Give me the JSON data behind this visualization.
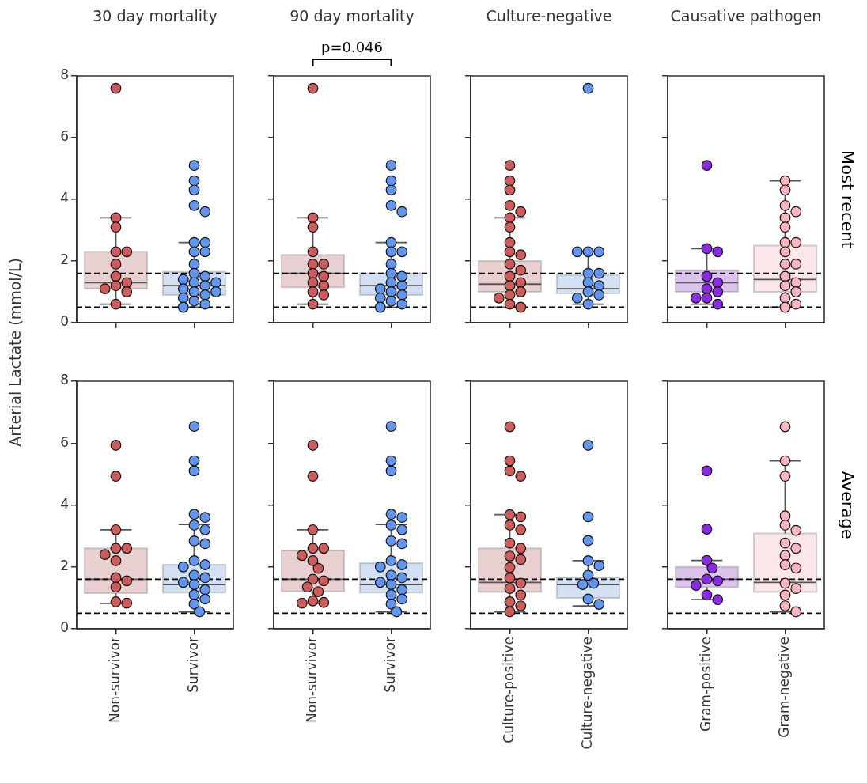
{
  "chart_data": [
    {
      "type": "box",
      "title": "30 day mortality",
      "ylabel": "Arterial Lactate (mmol/L)",
      "categories": [
        "Non-survivor",
        "Survivor"
      ],
      "ylim": [
        0,
        8
      ],
      "yticks": [
        0,
        2,
        4,
        6,
        8
      ],
      "tick_labels": "y",
      "marker": "circle",
      "ref_lines": [
        {
          "axis": "y",
          "value": 1.6,
          "color": "#000000",
          "line_style": "dashed"
        },
        {
          "axis": "y",
          "value": 0.5,
          "color": "#000000",
          "line_style": "dashed"
        }
      ],
      "series": [
        {
          "type": "box",
          "colors": [
            "#e8d0d1",
            "#d3dff3"
          ],
          "boxes": [
            {
              "low": 0.6,
              "q1": 1.1,
              "median": 1.3,
              "q3": 2.3,
              "high": 3.4
            },
            {
              "low": 0.5,
              "q1": 0.9,
              "median": 1.2,
              "q3": 1.65,
              "high": 2.6
            }
          ]
        },
        {
          "type": "scatter",
          "color": "#cd5c5c",
          "x": [
            "Non-survivor",
            "Non-survivor",
            "Non-survivor",
            "Non-survivor",
            "Non-survivor",
            "Non-survivor",
            "Non-survivor",
            "Non-survivor",
            "Non-survivor",
            "Non-survivor",
            "Non-survivor",
            "Non-survivor"
          ],
          "values": [
            7.6,
            3.4,
            3.1,
            2.3,
            2.3,
            1.9,
            1.5,
            1.3,
            1.2,
            1.1,
            1.0,
            0.6
          ]
        },
        {
          "type": "scatter",
          "color": "#6495ed",
          "x": [
            "Survivor",
            "Survivor",
            "Survivor",
            "Survivor",
            "Survivor",
            "Survivor",
            "Survivor",
            "Survivor",
            "Survivor",
            "Survivor",
            "Survivor",
            "Survivor",
            "Survivor",
            "Survivor",
            "Survivor",
            "Survivor",
            "Survivor",
            "Survivor",
            "Survivor",
            "Survivor",
            "Survivor",
            "Survivor",
            "Survivor",
            "Survivor"
          ],
          "values": [
            5.1,
            4.6,
            4.3,
            3.8,
            3.6,
            2.6,
            2.6,
            2.3,
            2.3,
            1.9,
            1.6,
            1.5,
            1.4,
            1.3,
            1.3,
            1.2,
            1.1,
            1.0,
            1.0,
            0.9,
            0.8,
            0.7,
            0.6,
            0.5
          ]
        }
      ]
    },
    {
      "type": "box",
      "title": "90 day mortality",
      "annotations": [
        "p=0.046"
      ],
      "categories": [
        "Non-survivor",
        "Survivor"
      ],
      "ylim": [
        0,
        8
      ],
      "yticks": [
        0,
        2,
        4,
        6,
        8
      ],
      "tick_labels": false,
      "marker": "circle",
      "ref_lines": [
        {
          "axis": "y",
          "value": 1.6,
          "color": "#000000",
          "line_style": "dashed"
        },
        {
          "axis": "y",
          "value": 0.5,
          "color": "#000000",
          "line_style": "dashed"
        }
      ],
      "series": [
        {
          "type": "box",
          "colors": [
            "#e8d0d1",
            "#d3dff3"
          ],
          "boxes": [
            {
              "low": 0.6,
              "q1": 1.15,
              "median": 1.6,
              "q3": 2.2,
              "high": 3.4
            },
            {
              "low": 0.5,
              "q1": 0.9,
              "median": 1.2,
              "q3": 1.6,
              "high": 2.6
            }
          ]
        },
        {
          "type": "scatter",
          "color": "#cd5c5c",
          "x": [
            "Non-survivor",
            "Non-survivor",
            "Non-survivor",
            "Non-survivor",
            "Non-survivor",
            "Non-survivor",
            "Non-survivor",
            "Non-survivor",
            "Non-survivor",
            "Non-survivor",
            "Non-survivor",
            "Non-survivor",
            "Non-survivor"
          ],
          "values": [
            7.6,
            3.4,
            3.1,
            2.3,
            1.9,
            1.9,
            1.6,
            1.5,
            1.3,
            1.2,
            1.0,
            0.9,
            0.6
          ]
        },
        {
          "type": "scatter",
          "color": "#6495ed",
          "x": [
            "Survivor",
            "Survivor",
            "Survivor",
            "Survivor",
            "Survivor",
            "Survivor",
            "Survivor",
            "Survivor",
            "Survivor",
            "Survivor",
            "Survivor",
            "Survivor",
            "Survivor",
            "Survivor",
            "Survivor",
            "Survivor",
            "Survivor",
            "Survivor",
            "Survivor",
            "Survivor"
          ],
          "values": [
            5.1,
            4.6,
            4.3,
            3.8,
            3.6,
            2.6,
            2.3,
            2.3,
            1.9,
            1.6,
            1.5,
            1.3,
            1.2,
            1.1,
            1.0,
            0.9,
            0.8,
            0.7,
            0.6,
            0.5
          ]
        }
      ]
    },
    {
      "type": "box",
      "title": "Culture-negative",
      "categories": [
        "Culture-positive",
        "Culture-negative"
      ],
      "ylim": [
        0,
        8
      ],
      "yticks": [
        0,
        2,
        4,
        6,
        8
      ],
      "tick_labels": false,
      "marker": "circle",
      "ref_lines": [
        {
          "axis": "y",
          "value": 1.6,
          "color": "#000000",
          "line_style": "dashed"
        },
        {
          "axis": "y",
          "value": 0.5,
          "color": "#000000",
          "line_style": "dashed"
        }
      ],
      "series": [
        {
          "type": "box",
          "colors": [
            "#e8d0d1",
            "#d3dff3"
          ],
          "boxes": [
            {
              "low": 0.5,
              "q1": 1.0,
              "median": 1.25,
              "q3": 2.0,
              "high": 3.4
            },
            {
              "low": 0.6,
              "q1": 0.95,
              "median": 1.1,
              "q3": 1.55,
              "high": 2.3
            }
          ]
        },
        {
          "type": "scatter",
          "color": "#cd5c5c",
          "x": [
            "Culture-positive",
            "Culture-positive",
            "Culture-positive",
            "Culture-positive",
            "Culture-positive",
            "Culture-positive",
            "Culture-positive",
            "Culture-positive",
            "Culture-positive",
            "Culture-positive",
            "Culture-positive",
            "Culture-positive",
            "Culture-positive",
            "Culture-positive",
            "Culture-positive",
            "Culture-positive",
            "Culture-positive",
            "Culture-positive",
            "Culture-positive",
            "Culture-positive"
          ],
          "values": [
            5.1,
            4.6,
            4.3,
            3.8,
            3.6,
            3.4,
            3.1,
            2.6,
            2.3,
            2.2,
            1.9,
            1.7,
            1.5,
            1.3,
            1.2,
            1.0,
            0.9,
            0.8,
            0.6,
            0.5
          ]
        },
        {
          "type": "scatter",
          "color": "#6495ed",
          "x": [
            "Culture-negative",
            "Culture-negative",
            "Culture-negative",
            "Culture-negative",
            "Culture-negative",
            "Culture-negative",
            "Culture-negative",
            "Culture-negative",
            "Culture-negative",
            "Culture-negative",
            "Culture-negative",
            "Culture-negative"
          ],
          "values": [
            7.6,
            2.3,
            2.3,
            2.3,
            1.6,
            1.6,
            1.3,
            1.2,
            1.0,
            0.9,
            0.8,
            0.6
          ]
        }
      ]
    },
    {
      "type": "box",
      "title": "Causative pathogen",
      "y2label": "Most recent",
      "categories": [
        "Gram-positive",
        "Gram-negative"
      ],
      "ylim": [
        0,
        8
      ],
      "yticks": [
        0,
        2,
        4,
        6,
        8
      ],
      "tick_labels": false,
      "marker": "circle",
      "ref_lines": [
        {
          "axis": "y",
          "value": 1.6,
          "color": "#000000",
          "line_style": "dashed"
        },
        {
          "axis": "y",
          "value": 0.5,
          "color": "#000000",
          "line_style": "dashed"
        }
      ],
      "series": [
        {
          "type": "box",
          "colors": [
            "#dcc3ee",
            "#fbe6ea"
          ],
          "boxes": [
            {
              "low": 0.6,
              "q1": 1.0,
              "median": 1.3,
              "q3": 1.7,
              "high": 2.4
            },
            {
              "low": 0.5,
              "q1": 1.0,
              "median": 1.4,
              "q3": 2.5,
              "high": 4.6
            }
          ]
        },
        {
          "type": "scatter",
          "color": "#8a2be2",
          "x": [
            "Gram-positive",
            "Gram-positive",
            "Gram-positive",
            "Gram-positive",
            "Gram-positive",
            "Gram-positive",
            "Gram-positive",
            "Gram-positive",
            "Gram-positive",
            "Gram-positive"
          ],
          "values": [
            5.1,
            2.4,
            2.3,
            1.5,
            1.3,
            1.1,
            1.0,
            0.8,
            0.8,
            0.6
          ]
        },
        {
          "type": "scatter",
          "color": "#ffb6c1",
          "x": [
            "Gram-negative",
            "Gram-negative",
            "Gram-negative",
            "Gram-negative",
            "Gram-negative",
            "Gram-negative",
            "Gram-negative",
            "Gram-negative",
            "Gram-negative",
            "Gram-negative",
            "Gram-negative",
            "Gram-negative",
            "Gram-negative",
            "Gram-negative",
            "Gram-negative",
            "Gram-negative",
            "Gram-negative",
            "Gram-negative"
          ],
          "values": [
            4.6,
            4.3,
            3.8,
            3.6,
            3.4,
            3.1,
            2.6,
            2.6,
            2.3,
            1.9,
            1.9,
            1.5,
            1.3,
            1.2,
            1.0,
            0.8,
            0.6,
            0.5
          ]
        }
      ]
    },
    {
      "type": "box",
      "categories": [
        "Non-survivor",
        "Survivor"
      ],
      "ylim": [
        0,
        8
      ],
      "yticks": [
        0,
        2,
        4,
        6,
        8
      ],
      "marker": "circle",
      "ref_lines": [
        {
          "axis": "y",
          "value": 1.6,
          "color": "#000000",
          "line_style": "dashed"
        },
        {
          "axis": "y",
          "value": 0.5,
          "color": "#000000",
          "line_style": "dashed"
        }
      ],
      "series": [
        {
          "type": "box",
          "colors": [
            "#e8d0d1",
            "#d3dff3"
          ],
          "boxes": [
            {
              "low": 0.82,
              "q1": 1.15,
              "median": 1.6,
              "q3": 2.6,
              "high": 3.2
            },
            {
              "low": 0.55,
              "q1": 1.17,
              "median": 1.43,
              "q3": 2.07,
              "high": 3.37
            }
          ]
        },
        {
          "type": "scatter",
          "color": "#cd5c5c",
          "x": [
            "Non-survivor",
            "Non-survivor",
            "Non-survivor",
            "Non-survivor",
            "Non-survivor",
            "Non-survivor",
            "Non-survivor",
            "Non-survivor",
            "Non-survivor",
            "Non-survivor",
            "Non-survivor",
            "Non-survivor"
          ],
          "values": [
            5.93,
            4.93,
            3.2,
            2.6,
            2.6,
            2.4,
            2.2,
            1.65,
            1.55,
            1.35,
            0.87,
            0.83
          ]
        },
        {
          "type": "scatter",
          "color": "#6495ed",
          "x": [
            "Survivor",
            "Survivor",
            "Survivor",
            "Survivor",
            "Survivor",
            "Survivor",
            "Survivor",
            "Survivor",
            "Survivor",
            "Survivor",
            "Survivor",
            "Survivor",
            "Survivor",
            "Survivor",
            "Survivor",
            "Survivor",
            "Survivor",
            "Survivor",
            "Survivor",
            "Survivor",
            "Survivor"
          ],
          "values": [
            6.54,
            5.43,
            5.1,
            3.7,
            3.6,
            3.35,
            3.2,
            2.84,
            2.75,
            2.2,
            2.07,
            2.0,
            1.73,
            1.65,
            1.5,
            1.43,
            1.26,
            1.1,
            0.96,
            0.8,
            0.55
          ]
        }
      ]
    },
    {
      "type": "box",
      "categories": [
        "Non-survivor",
        "Survivor"
      ],
      "ylim": [
        0,
        8
      ],
      "yticks": [
        0,
        2,
        4,
        6,
        8
      ],
      "tick_labels": "x",
      "marker": "circle",
      "ref_lines": [
        {
          "axis": "y",
          "value": 1.6,
          "color": "#000000",
          "line_style": "dashed"
        },
        {
          "axis": "y",
          "value": 0.5,
          "color": "#000000",
          "line_style": "dashed"
        }
      ],
      "series": [
        {
          "type": "box",
          "colors": [
            "#e8d0d1",
            "#d3dff3"
          ],
          "boxes": [
            {
              "low": 0.82,
              "q1": 1.21,
              "median": 1.6,
              "q3": 2.53,
              "high": 3.2
            },
            {
              "low": 0.55,
              "q1": 1.17,
              "median": 1.43,
              "q3": 2.12,
              "high": 3.37
            }
          ]
        },
        {
          "type": "scatter",
          "color": "#cd5c5c",
          "x": [
            "Non-survivor",
            "Non-survivor",
            "Non-survivor",
            "Non-survivor",
            "Non-survivor",
            "Non-survivor",
            "Non-survivor",
            "Non-survivor",
            "Non-survivor",
            "Non-survivor",
            "Non-survivor",
            "Non-survivor",
            "Non-survivor",
            "Non-survivor",
            "Non-survivor"
          ],
          "values": [
            5.93,
            4.93,
            3.2,
            2.6,
            2.6,
            2.37,
            2.2,
            1.95,
            1.6,
            1.55,
            1.35,
            1.2,
            0.9,
            0.85,
            0.83
          ]
        },
        {
          "type": "scatter",
          "color": "#6495ed",
          "x": [
            "Survivor",
            "Survivor",
            "Survivor",
            "Survivor",
            "Survivor",
            "Survivor",
            "Survivor",
            "Survivor",
            "Survivor",
            "Survivor",
            "Survivor",
            "Survivor",
            "Survivor",
            "Survivor",
            "Survivor",
            "Survivor",
            "Survivor",
            "Survivor",
            "Survivor",
            "Survivor",
            "Survivor"
          ],
          "values": [
            6.54,
            5.43,
            5.1,
            3.7,
            3.6,
            3.35,
            3.2,
            2.84,
            2.75,
            2.2,
            2.07,
            2.0,
            1.73,
            1.65,
            1.5,
            1.43,
            1.26,
            1.1,
            0.96,
            0.8,
            0.55
          ]
        }
      ]
    },
    {
      "type": "box",
      "categories": [
        "Culture-positive",
        "Culture-negative"
      ],
      "ylim": [
        0,
        8
      ],
      "yticks": [
        0,
        2,
        4,
        6,
        8
      ],
      "tick_labels": "x",
      "marker": "circle",
      "ref_lines": [
        {
          "axis": "y",
          "value": 1.6,
          "color": "#000000",
          "line_style": "dashed"
        },
        {
          "axis": "y",
          "value": 0.5,
          "color": "#000000",
          "line_style": "dashed"
        }
      ],
      "series": [
        {
          "type": "box",
          "colors": [
            "#e8d0d1",
            "#d3dff3"
          ],
          "boxes": [
            {
              "low": 0.55,
              "q1": 1.19,
              "median": 1.5,
              "q3": 2.6,
              "high": 3.69
            },
            {
              "low": 0.74,
              "q1": 1.0,
              "median": 1.43,
              "q3": 1.66,
              "high": 2.2
            }
          ]
        },
        {
          "type": "scatter",
          "color": "#cd5c5c",
          "x": [
            "Culture-positive",
            "Culture-positive",
            "Culture-positive",
            "Culture-positive",
            "Culture-positive",
            "Culture-positive",
            "Culture-positive",
            "Culture-positive",
            "Culture-positive",
            "Culture-positive",
            "Culture-positive",
            "Culture-positive",
            "Culture-positive",
            "Culture-positive",
            "Culture-positive",
            "Culture-positive",
            "Culture-positive",
            "Culture-positive",
            "Culture-positive",
            "Culture-positive"
          ],
          "values": [
            6.53,
            5.43,
            5.1,
            4.93,
            3.69,
            3.62,
            3.35,
            3.2,
            2.77,
            2.6,
            2.35,
            2.24,
            1.98,
            1.64,
            1.47,
            1.3,
            1.09,
            0.87,
            0.74,
            0.55
          ]
        },
        {
          "type": "scatter",
          "color": "#6495ed",
          "x": [
            "Culture-negative",
            "Culture-negative",
            "Culture-negative",
            "Culture-negative",
            "Culture-negative",
            "Culture-negative",
            "Culture-negative",
            "Culture-negative",
            "Culture-negative",
            "Culture-negative"
          ],
          "values": [
            5.93,
            3.62,
            2.85,
            2.2,
            2.04,
            1.73,
            1.47,
            1.43,
            0.96,
            0.79
          ]
        }
      ]
    },
    {
      "type": "box",
      "y2label": "Average",
      "categories": [
        "Gram-positive",
        "Gram-negative"
      ],
      "ylim": [
        0,
        8
      ],
      "yticks": [
        0,
        2,
        4,
        6,
        8
      ],
      "tick_labels": "x",
      "marker": "circle",
      "ref_lines": [
        {
          "axis": "y",
          "value": 1.6,
          "color": "#000000",
          "line_style": "dashed"
        },
        {
          "axis": "y",
          "value": 0.5,
          "color": "#000000",
          "line_style": "dashed"
        }
      ],
      "series": [
        {
          "type": "box",
          "colors": [
            "#dcc3ee",
            "#fbe6ea"
          ],
          "boxes": [
            {
              "low": 0.94,
              "q1": 1.34,
              "median": 1.6,
              "q3": 2.0,
              "high": 2.21
            },
            {
              "low": 0.55,
              "q1": 1.19,
              "median": 1.5,
              "q3": 3.08,
              "high": 5.43
            }
          ]
        },
        {
          "type": "scatter",
          "color": "#8a2be2",
          "x": [
            "Gram-positive",
            "Gram-positive",
            "Gram-positive",
            "Gram-positive",
            "Gram-positive",
            "Gram-positive",
            "Gram-positive",
            "Gram-positive",
            "Gram-positive"
          ],
          "values": [
            5.1,
            3.22,
            2.21,
            1.96,
            1.6,
            1.55,
            1.4,
            1.09,
            0.94
          ]
        },
        {
          "type": "scatter",
          "color": "#ffb6c1",
          "x": [
            "Gram-negative",
            "Gram-negative",
            "Gram-negative",
            "Gram-negative",
            "Gram-negative",
            "Gram-negative",
            "Gram-negative",
            "Gram-negative",
            "Gram-negative",
            "Gram-negative",
            "Gram-negative",
            "Gram-negative",
            "Gram-negative",
            "Gram-negative",
            "Gram-negative",
            "Gram-negative"
          ],
          "values": [
            6.53,
            5.43,
            4.93,
            3.65,
            3.35,
            3.18,
            2.77,
            2.6,
            2.37,
            2.07,
            1.96,
            1.47,
            1.3,
            1.09,
            0.74,
            0.55
          ]
        }
      ]
    }
  ]
}
